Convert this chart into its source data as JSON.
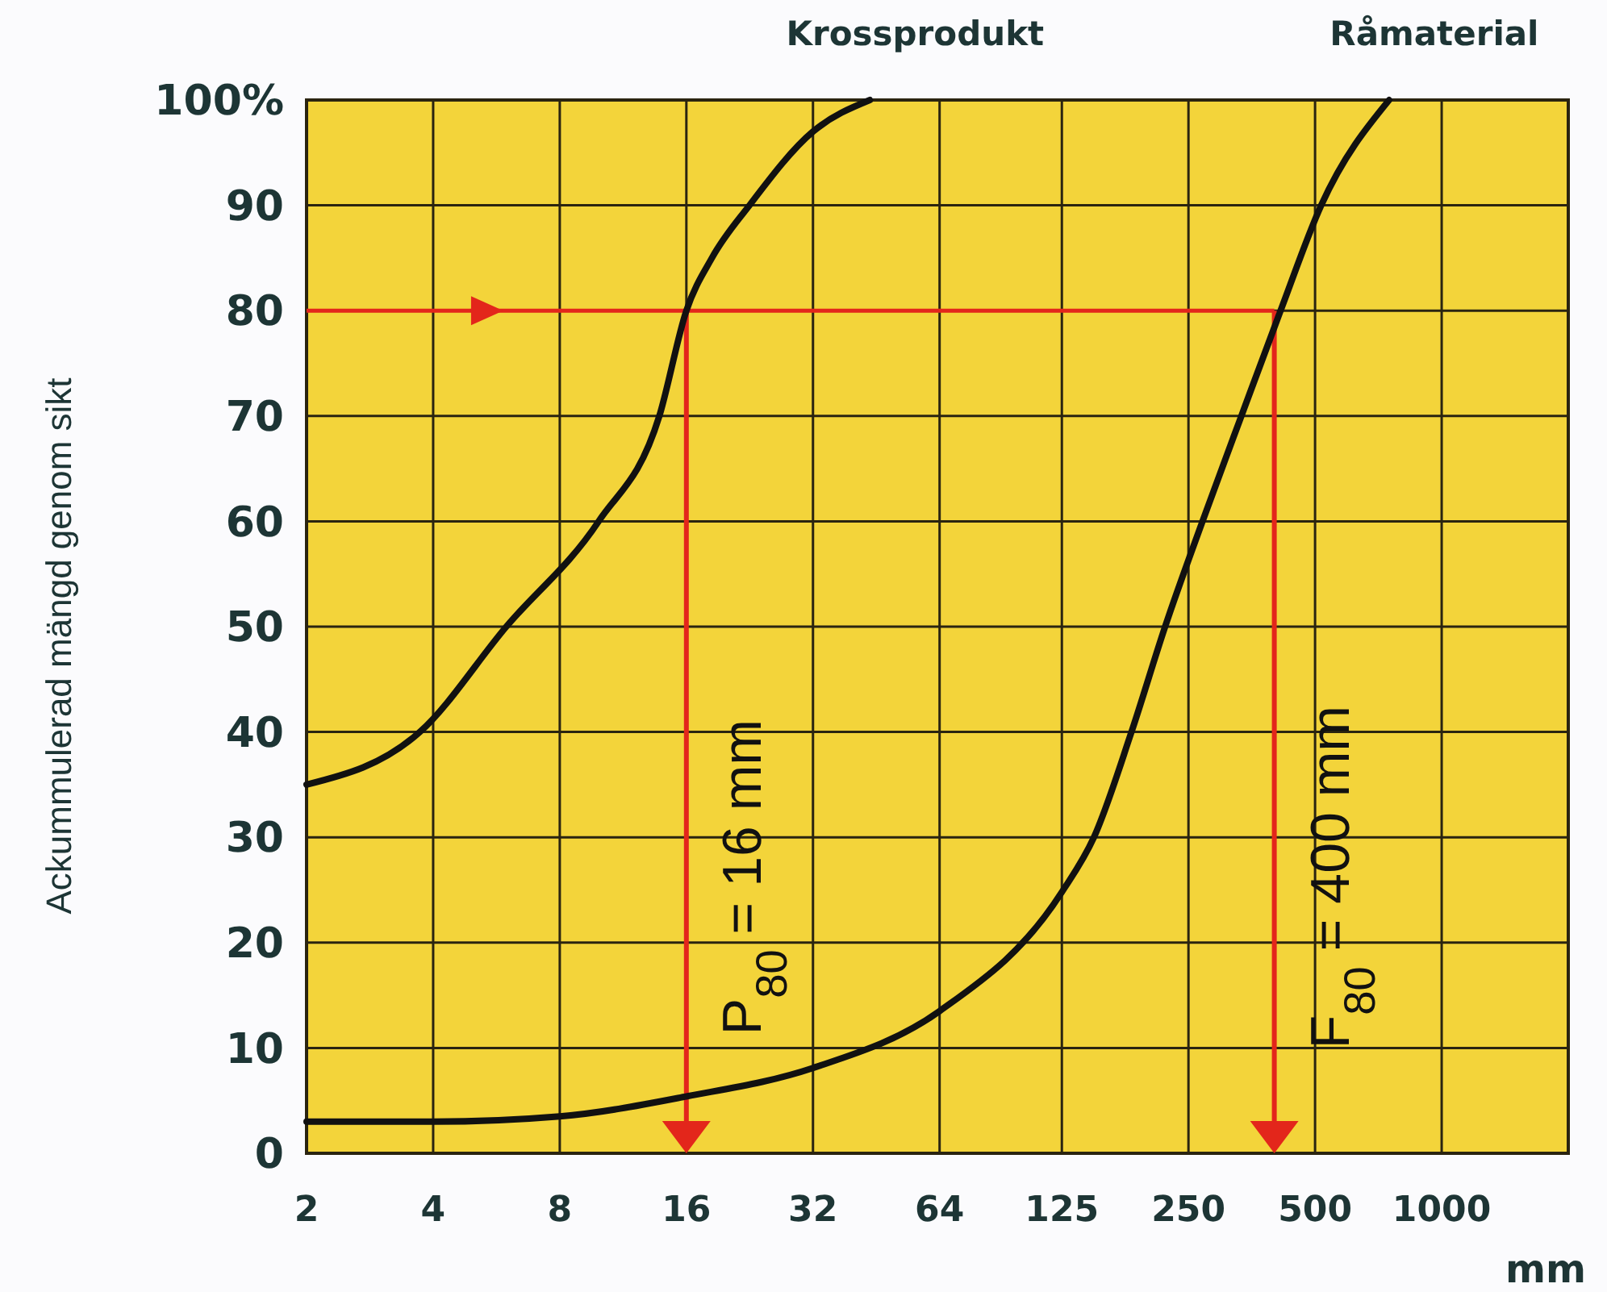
{
  "chart_data": {
    "type": "line",
    "xlabel": "mm",
    "ylabel": "Ackummulerad mängd genom sikt",
    "log": "x",
    "grid": true,
    "line_style": "solid",
    "xlim": [
      2,
      2000
    ],
    "xticks": [
      2,
      4,
      8,
      16,
      32,
      64,
      125,
      250,
      500,
      1000
    ],
    "ylim": [
      0,
      100
    ],
    "yticks": [
      0,
      10,
      20,
      30,
      40,
      50,
      60,
      70,
      80,
      90,
      {
        "value": 100,
        "label": "100%"
      }
    ],
    "series": [
      {
        "name": "Krossprodukt",
        "color": "#111111",
        "x": [
          2,
          3.72,
          5.97,
          9.9,
          13.8,
          16,
          18.4,
          22.6,
          32,
          43.7
        ],
        "values": [
          35,
          40,
          50,
          60,
          70,
          80,
          85,
          90,
          97,
          100
        ]
      },
      {
        "name": "Råmaterial",
        "color": "#111111",
        "x": [
          2,
          4,
          8,
          16,
          32,
          64,
          125,
          149,
          183,
          220,
          270,
          334,
          414,
          517,
          750
        ],
        "values": [
          3,
          3,
          3.5,
          5.4,
          8.1,
          13.5,
          24.8,
          30,
          40,
          50,
          60,
          70,
          80,
          90,
          100
        ]
      }
    ],
    "ref_lines": [
      {
        "axis": "y",
        "value": 80,
        "color": "#e3261b"
      },
      {
        "axis": "x",
        "value": 16,
        "label": "P$_{80}$ = 16 mm",
        "color": "#e3261b"
      },
      {
        "axis": "x",
        "value": 400,
        "label": "F$_{80}$ = 400 mm",
        "color": "#e3261b"
      }
    ]
  }
}
